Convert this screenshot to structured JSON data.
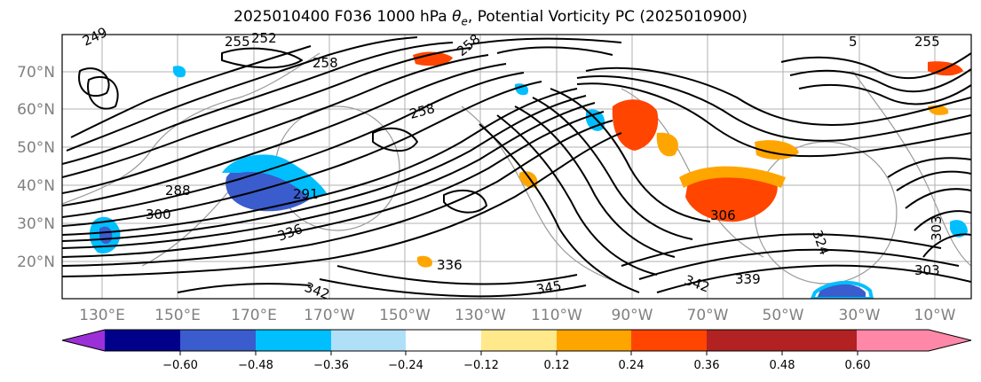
{
  "title": "2025010400 F036 1000 hPa θe, Potential Vorticity PC (2025010900)",
  "map": {
    "lat_labels": [
      "70°N",
      "60°N",
      "50°N",
      "40°N",
      "30°N",
      "20°N"
    ],
    "lon_labels": [
      "130°E",
      "150°E",
      "170°E",
      "170°W",
      "150°W",
      "130°W",
      "110°W",
      "90°W",
      "70°W",
      "50°W",
      "30°W",
      "10°W"
    ],
    "contour_labels": [
      "249",
      "255",
      "252",
      "258",
      "258",
      "258",
      "255",
      "288",
      "300",
      "291",
      "336",
      "342",
      "345",
      "339",
      "342",
      "336",
      "306",
      "324",
      "303",
      "303",
      "5"
    ]
  },
  "colorbar": {
    "levels": [
      "−0.60",
      "−0.48",
      "−0.36",
      "−0.24",
      "−0.12",
      "0.12",
      "0.24",
      "0.36",
      "0.48",
      "0.60"
    ],
    "colors": [
      "#9b30d8",
      "#00008b",
      "#3a5ccc",
      "#00bfff",
      "#b0e0f8",
      "#ffffff",
      "#ffe98a",
      "#ffa500",
      "#ff4500",
      "#b22222",
      "#ff88a8"
    ]
  },
  "chart_data": {
    "type": "heatmap",
    "title": "2025010400 F036 1000 hPa θe, Potential Vorticity PC (2025010900)",
    "fields": [
      "1000 hPa equivalent potential temperature (contours, K)",
      "Potential Vorticity PC (shaded)"
    ],
    "xlabel": "",
    "ylabel": "",
    "lon_range": [
      "120°E",
      "0°"
    ],
    "lat_range": [
      "10°N",
      "80°N"
    ],
    "color_levels": [
      -0.6,
      -0.48,
      -0.36,
      -0.24,
      -0.12,
      0.12,
      0.24,
      0.36,
      0.48,
      0.6
    ],
    "contour_values_labeled": [
      249,
      252,
      255,
      258,
      288,
      291,
      300,
      303,
      306,
      324,
      336,
      339,
      342,
      345
    ]
  }
}
